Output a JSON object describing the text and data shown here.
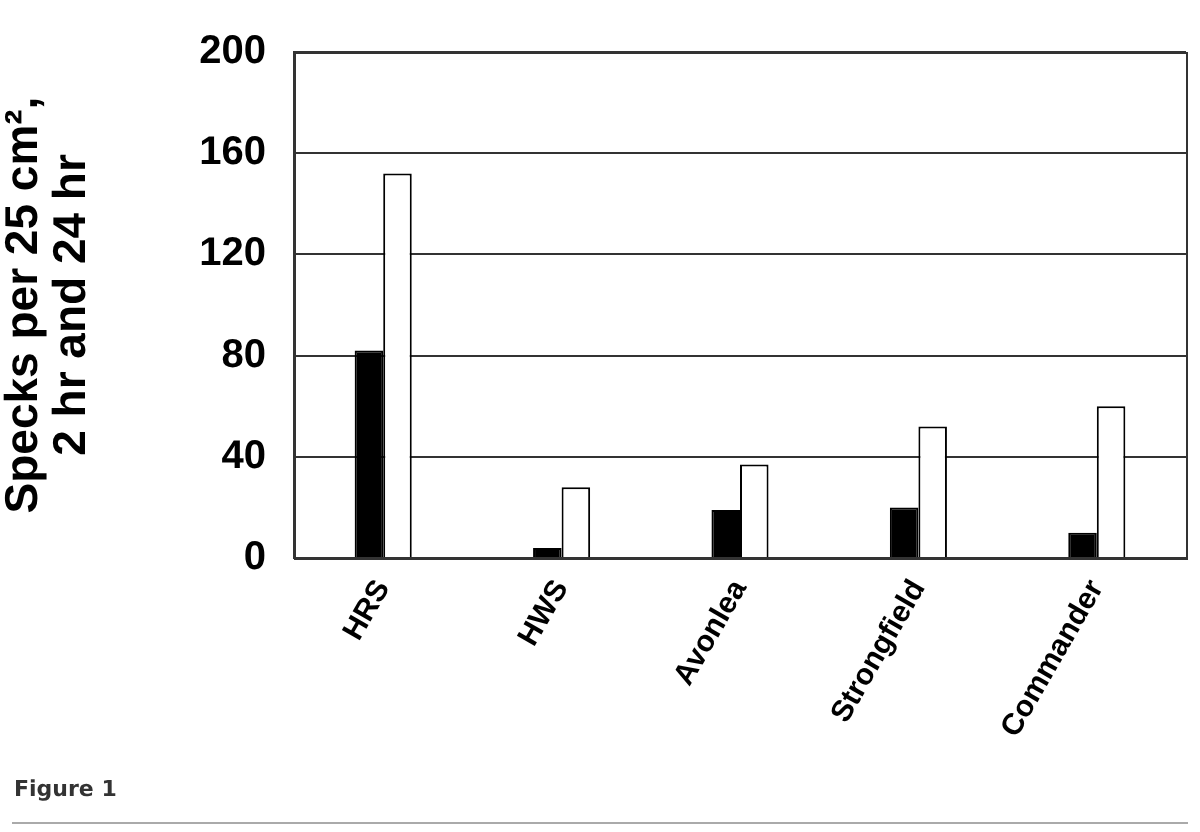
{
  "chart_data": {
    "type": "bar",
    "categories": [
      "HRS",
      "HWS",
      "Avonlea",
      "Strongfield",
      "Commander"
    ],
    "series": [
      {
        "color": "#000000",
        "values": [
          82,
          4,
          19,
          20,
          10
        ]
      },
      {
        "color": "#ffffff",
        "values": [
          152,
          28,
          37,
          52,
          60
        ]
      }
    ],
    "ylabel": "Specks per 25 cm²,\n2 hr and 24 hr",
    "ylim": [
      0,
      200
    ],
    "yticks": [
      0,
      40,
      80,
      120,
      160,
      200
    ],
    "grid": "y",
    "annotations": [
      "Figure 1"
    ]
  }
}
